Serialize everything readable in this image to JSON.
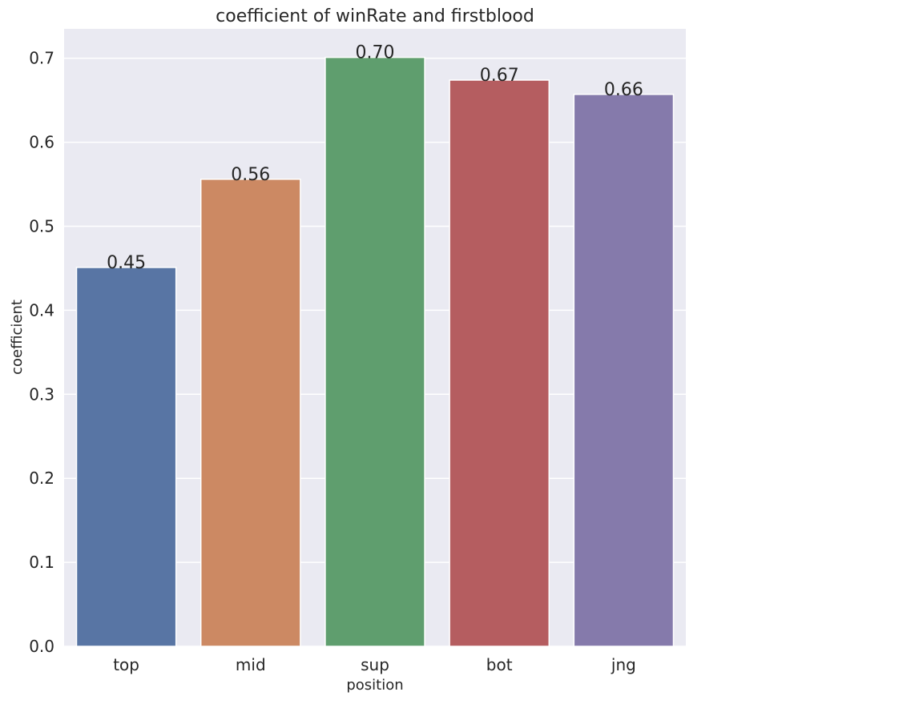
{
  "chart_data": {
    "type": "bar",
    "title": "coefficient of winRate and firstblood",
    "xlabel": "position",
    "ylabel": "coefficient",
    "categories": [
      "top",
      "mid",
      "sup",
      "bot",
      "jng"
    ],
    "values": [
      0.451,
      0.556,
      0.701,
      0.674,
      0.657
    ],
    "value_labels": [
      "0.45",
      "0.56",
      "0.70",
      "0.67",
      "0.66"
    ],
    "colors": [
      "#5875a4",
      "#cc8963",
      "#5f9e6e",
      "#b55d60",
      "#857aab"
    ],
    "ylim": [
      0,
      0.735
    ],
    "yticks": [
      0.0,
      0.1,
      0.2,
      0.3,
      0.4,
      0.5,
      0.6,
      0.7
    ],
    "ytick_labels": [
      "0.0",
      "0.1",
      "0.2",
      "0.3",
      "0.4",
      "0.5",
      "0.6",
      "0.7"
    ],
    "grid": true,
    "background": "#eaeaf2"
  }
}
